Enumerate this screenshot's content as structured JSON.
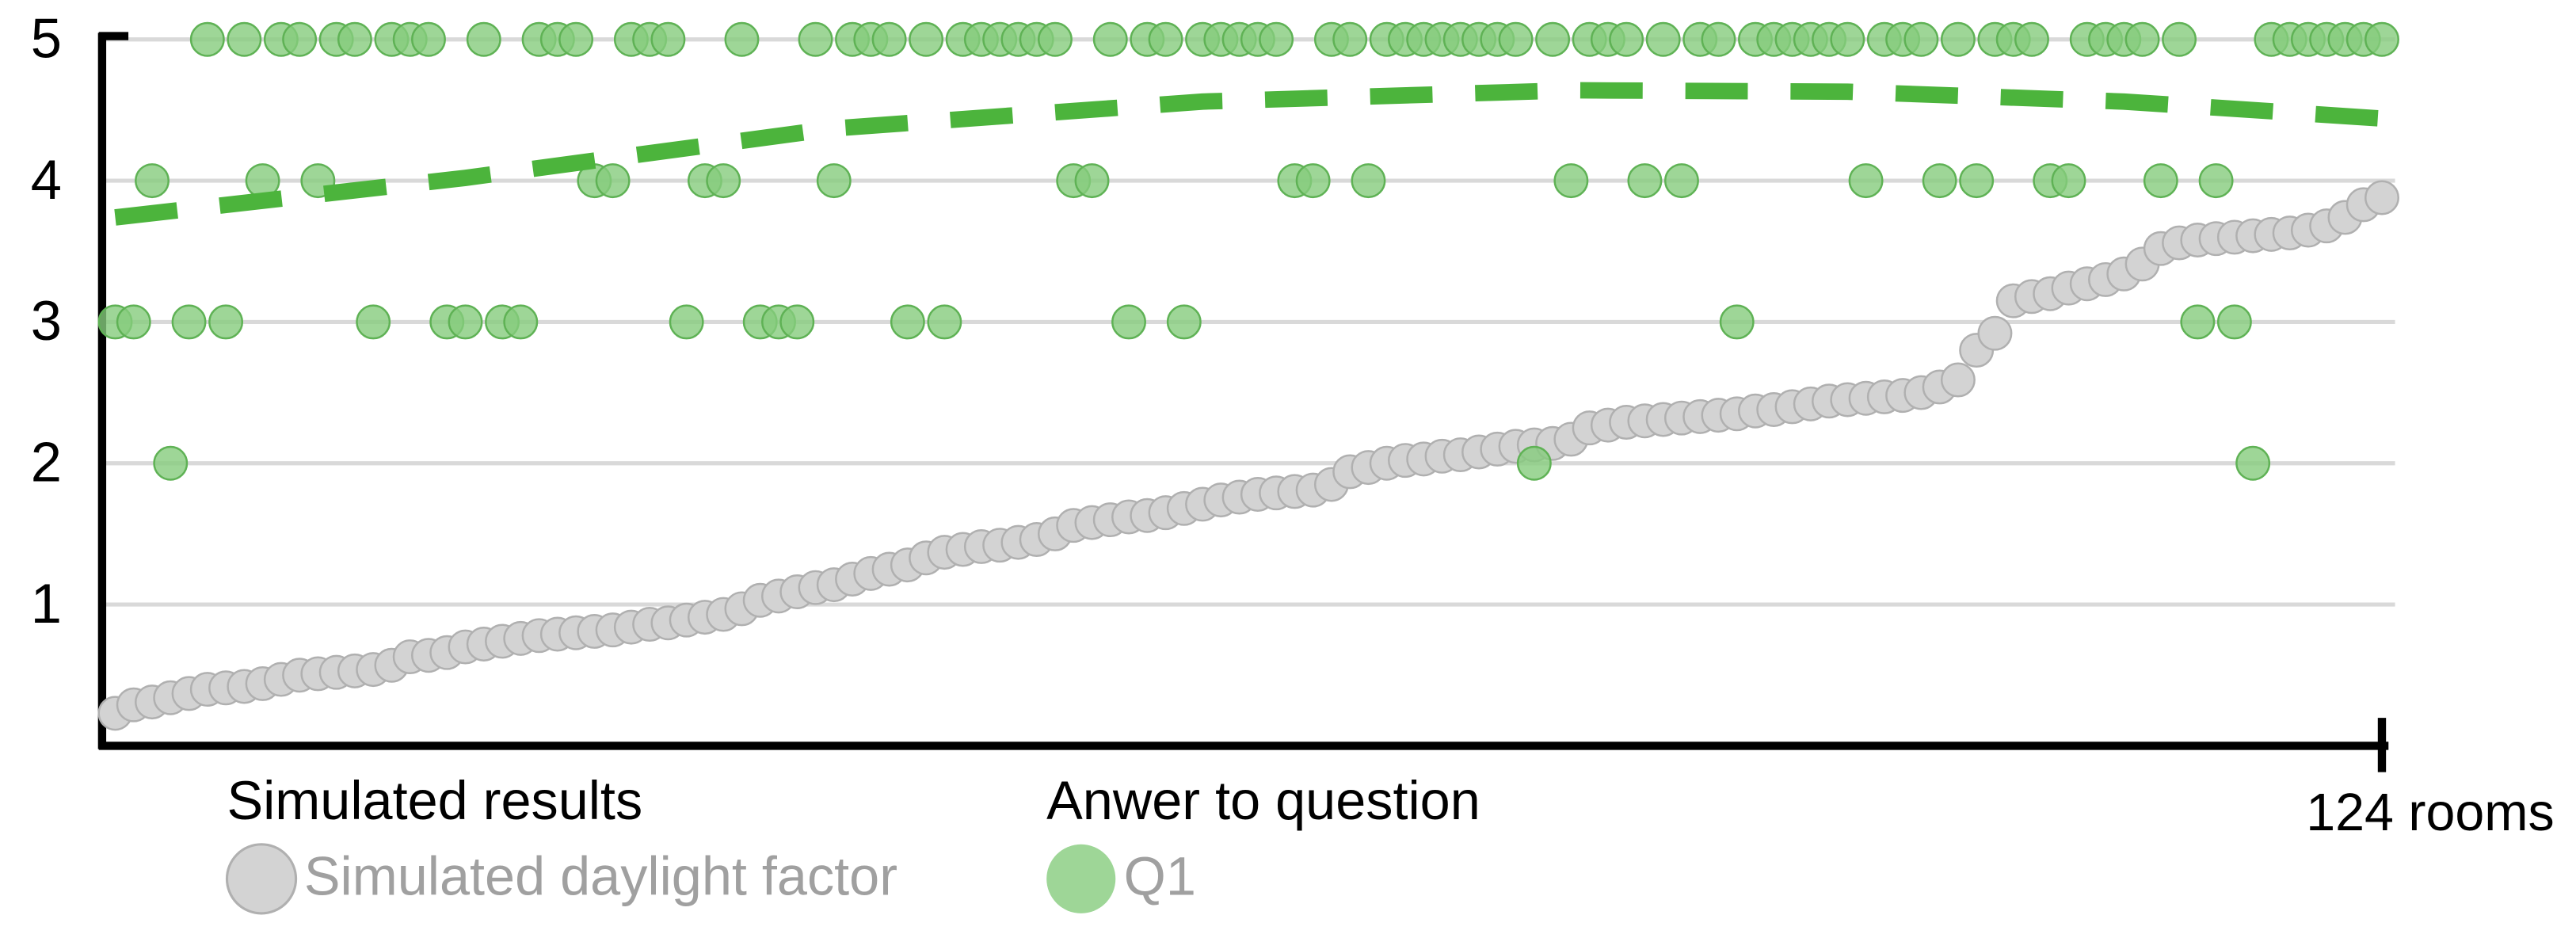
{
  "chart_data": {
    "type": "scatter",
    "x": [
      1,
      2,
      3,
      4,
      5,
      6,
      7,
      8,
      9,
      10,
      11,
      12,
      13,
      14,
      15,
      16,
      17,
      18,
      19,
      20,
      21,
      22,
      23,
      24,
      25,
      26,
      27,
      28,
      29,
      30,
      31,
      32,
      33,
      34,
      35,
      36,
      37,
      38,
      39,
      40,
      41,
      42,
      43,
      44,
      45,
      46,
      47,
      48,
      49,
      50,
      51,
      52,
      53,
      54,
      55,
      56,
      57,
      58,
      59,
      60,
      61,
      62,
      63,
      64,
      65,
      66,
      67,
      68,
      69,
      70,
      71,
      72,
      73,
      74,
      75,
      76,
      77,
      78,
      79,
      80,
      81,
      82,
      83,
      84,
      85,
      86,
      87,
      88,
      89,
      90,
      91,
      92,
      93,
      94,
      95,
      96,
      97,
      98,
      99,
      100,
      101,
      102,
      103,
      104,
      105,
      106,
      107,
      108,
      109,
      110,
      111,
      112,
      113,
      114,
      115,
      116,
      117,
      118,
      119,
      120,
      121,
      122,
      123,
      124
    ],
    "series": [
      {
        "name": "Simulated daylight factor",
        "color": "#d3d3d3",
        "stroke": "#b0b0b0",
        "values": [
          0.23,
          0.29,
          0.31,
          0.34,
          0.37,
          0.4,
          0.41,
          0.42,
          0.44,
          0.47,
          0.5,
          0.51,
          0.52,
          0.53,
          0.54,
          0.57,
          0.63,
          0.64,
          0.66,
          0.7,
          0.72,
          0.74,
          0.76,
          0.78,
          0.79,
          0.8,
          0.81,
          0.82,
          0.84,
          0.86,
          0.87,
          0.89,
          0.91,
          0.93,
          0.97,
          1.03,
          1.06,
          1.09,
          1.12,
          1.14,
          1.18,
          1.22,
          1.25,
          1.28,
          1.33,
          1.37,
          1.39,
          1.41,
          1.42,
          1.44,
          1.46,
          1.5,
          1.56,
          1.58,
          1.6,
          1.62,
          1.63,
          1.65,
          1.68,
          1.71,
          1.74,
          1.76,
          1.78,
          1.79,
          1.8,
          1.81,
          1.85,
          1.94,
          1.97,
          2.0,
          2.02,
          2.03,
          2.05,
          2.06,
          2.08,
          2.1,
          2.12,
          2.13,
          2.14,
          2.17,
          2.25,
          2.27,
          2.29,
          2.3,
          2.31,
          2.32,
          2.33,
          2.34,
          2.35,
          2.37,
          2.38,
          2.4,
          2.42,
          2.44,
          2.45,
          2.46,
          2.47,
          2.48,
          2.5,
          2.54,
          2.59,
          2.8,
          2.92,
          3.15,
          3.18,
          3.2,
          3.24,
          3.27,
          3.3,
          3.34,
          3.41,
          3.52,
          3.56,
          3.58,
          3.59,
          3.6,
          3.61,
          3.62,
          3.63,
          3.65,
          3.68,
          3.74,
          3.83,
          3.88
        ]
      },
      {
        "name": "Q1",
        "color": "#86cc7d",
        "stroke": "#5fb255",
        "values": [
          3,
          3,
          4,
          2,
          3,
          5,
          3,
          5,
          4,
          5,
          5,
          4,
          5,
          5,
          3,
          5,
          5,
          5,
          3,
          3,
          5,
          3,
          3,
          5,
          5,
          5,
          4,
          4,
          5,
          5,
          5,
          3,
          4,
          4,
          5,
          3,
          3,
          3,
          5,
          4,
          5,
          5,
          5,
          3,
          5,
          3,
          5,
          5,
          5,
          5,
          5,
          5,
          4,
          4,
          5,
          3,
          5,
          5,
          3,
          5,
          5,
          5,
          5,
          5,
          4,
          4,
          5,
          5,
          4,
          5,
          5,
          5,
          5,
          5,
          5,
          5,
          5,
          2,
          5,
          4,
          5,
          5,
          5,
          4,
          5,
          4,
          5,
          5,
          3,
          5,
          5,
          5,
          5,
          5,
          5,
          4,
          5,
          5,
          5,
          4,
          5,
          4,
          5,
          5,
          5,
          4,
          4,
          5,
          5,
          5,
          5,
          4,
          5,
          3,
          4,
          3,
          2,
          5,
          5,
          5,
          5,
          5,
          5,
          5
        ]
      }
    ],
    "trend": {
      "color": "#4cb43c",
      "x": [
        1,
        20,
        40,
        60,
        80,
        95,
        110,
        124
      ],
      "values": [
        3.74,
        4.02,
        4.37,
        4.56,
        4.64,
        4.63,
        4.56,
        4.44
      ]
    },
    "xlim": [
      1,
      124
    ],
    "xticks": [
      {
        "value": 124,
        "label": "124 rooms"
      }
    ],
    "ylim": [
      0,
      5
    ],
    "yticks": [
      1,
      2,
      3,
      4,
      5
    ],
    "grid": true,
    "legend_titles": [
      "Simulated results",
      "Anwer to question"
    ]
  }
}
